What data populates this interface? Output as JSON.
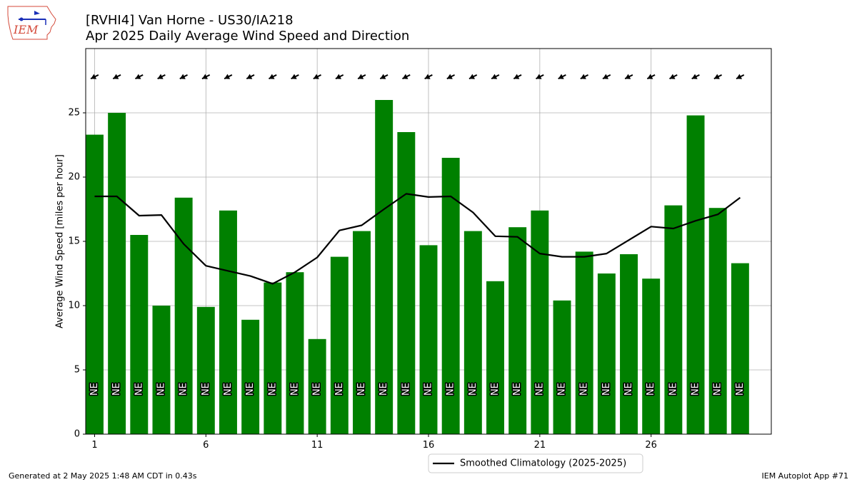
{
  "header": {
    "title": "[RVHI4] Van Horne - US30/IA218",
    "subtitle": "Apr 2025 Daily Average Wind Speed and Direction",
    "logo_text": "IEM"
  },
  "footer": {
    "generated": "Generated at 2 May 2025 1:48 AM CDT in 0.43s",
    "app": "IEM Autoplot App #71"
  },
  "colors": {
    "bar": "#008000",
    "climatology": "#000000",
    "grid": "#b0b0b0",
    "logo_red": "#d44a3a",
    "logo_blue": "#1a2fb8"
  },
  "chart_data": {
    "type": "bar",
    "ylabel": "Average Wind Speed [miles per hour]",
    "xlabel": "",
    "ylim": [
      0,
      30
    ],
    "xlim": [
      0.6,
      31.4
    ],
    "yticks": [
      0,
      5,
      10,
      15,
      20,
      25
    ],
    "xticks": [
      1,
      6,
      11,
      16,
      21,
      26
    ],
    "grid": true,
    "legend": {
      "placement": "bottom-center",
      "entry": "Smoothed Climatology (2025-2025)"
    },
    "days": [
      1,
      2,
      3,
      4,
      5,
      6,
      7,
      8,
      9,
      10,
      11,
      12,
      13,
      14,
      15,
      16,
      17,
      18,
      19,
      20,
      21,
      22,
      23,
      24,
      25,
      26,
      27,
      28,
      29,
      30
    ],
    "speed": [
      23.3,
      25.0,
      15.5,
      10.0,
      18.4,
      9.9,
      17.4,
      8.9,
      11.8,
      12.6,
      7.4,
      13.8,
      15.8,
      26.0,
      23.5,
      14.7,
      21.5,
      15.8,
      11.9,
      16.1,
      17.4,
      10.4,
      14.2,
      12.5,
      14.0,
      12.1,
      17.8,
      24.8,
      17.6,
      13.3
    ],
    "direction": [
      "NE",
      "NE",
      "NE",
      "NE",
      "NE",
      "NE",
      "NE",
      "NE",
      "NE",
      "NE",
      "NE",
      "NE",
      "NE",
      "NE",
      "NE",
      "NE",
      "NE",
      "NE",
      "NE",
      "NE",
      "NE",
      "NE",
      "NE",
      "NE",
      "NE",
      "NE",
      "NE",
      "NE",
      "NE",
      "NE"
    ],
    "climatology": [
      18.5,
      18.5,
      17.0,
      17.05,
      14.8,
      13.1,
      12.7,
      12.3,
      11.7,
      12.6,
      13.75,
      15.85,
      16.25,
      17.5,
      18.7,
      18.45,
      18.5,
      17.25,
      15.4,
      15.35,
      14.05,
      13.8,
      13.8,
      14.05,
      15.1,
      16.15,
      16.0,
      16.6,
      17.1,
      18.4
    ],
    "series": [
      {
        "name": "Smoothed Climatology (2025-2025)",
        "values": [
          18.5,
          18.5,
          17.0,
          17.05,
          14.8,
          13.1,
          12.7,
          12.3,
          11.7,
          12.6,
          13.75,
          15.85,
          16.25,
          17.5,
          18.7,
          18.45,
          18.5,
          17.25,
          15.4,
          15.35,
          14.05,
          13.8,
          13.8,
          14.05,
          15.1,
          16.15,
          16.0,
          16.6,
          17.1,
          18.4
        ]
      }
    ]
  }
}
